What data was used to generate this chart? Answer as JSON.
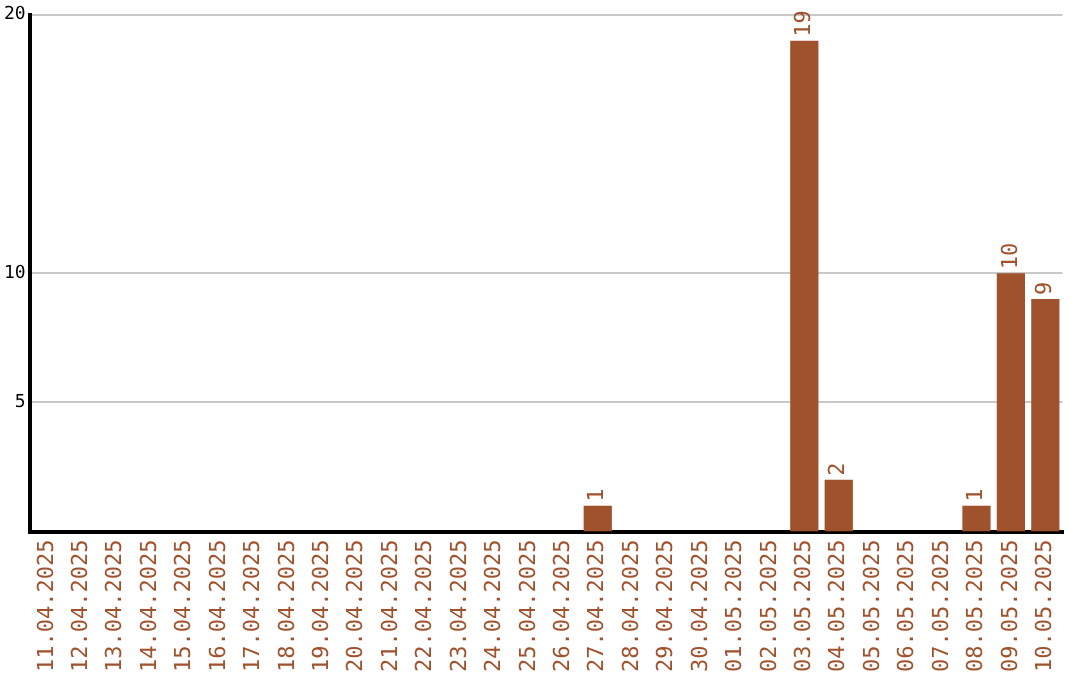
{
  "chart_data": {
    "type": "bar",
    "categories": [
      "11.04.2025",
      "12.04.2025",
      "13.04.2025",
      "14.04.2025",
      "15.04.2025",
      "16.04.2025",
      "17.04.2025",
      "18.04.2025",
      "19.04.2025",
      "20.04.2025",
      "21.04.2025",
      "22.04.2025",
      "23.04.2025",
      "24.04.2025",
      "25.04.2025",
      "26.04.2025",
      "27.04.2025",
      "28.04.2025",
      "29.04.2025",
      "30.04.2025",
      "01.05.2025",
      "02.05.2025",
      "03.05.2025",
      "04.05.2025",
      "05.05.2025",
      "06.05.2025",
      "07.05.2025",
      "08.05.2025",
      "09.05.2025",
      "10.05.2025"
    ],
    "values": [
      0,
      0,
      0,
      0,
      0,
      0,
      0,
      0,
      0,
      0,
      0,
      0,
      0,
      0,
      0,
      0,
      1,
      0,
      0,
      0,
      0,
      0,
      19,
      2,
      0,
      0,
      0,
      1,
      10,
      9
    ],
    "value_labels": [
      null,
      null,
      null,
      null,
      null,
      null,
      null,
      null,
      null,
      null,
      null,
      null,
      null,
      null,
      null,
      null,
      "1",
      null,
      null,
      null,
      null,
      null,
      "19",
      "2",
      null,
      null,
      null,
      "1",
      "10",
      "9"
    ],
    "color": "#a0522d",
    "ylim": [
      0,
      20
    ],
    "yticks": [
      5,
      10,
      20
    ],
    "grid": "y",
    "legend": false
  }
}
